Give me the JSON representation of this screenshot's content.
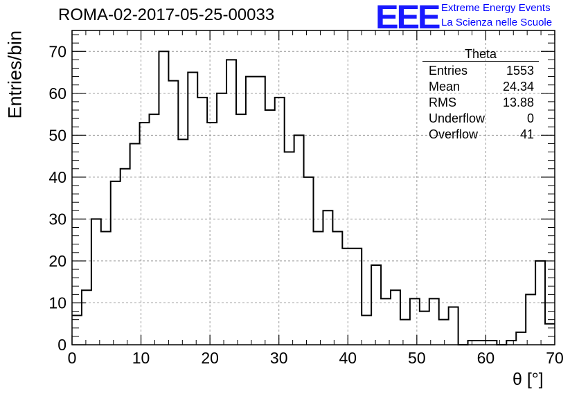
{
  "header": {
    "run_title": "ROMA-02-2017-05-25-00033",
    "logo_text": "EEE",
    "logo_line1": "Extreme Energy Events",
    "logo_line2": "La Scienza nelle Scuole"
  },
  "stats_box": {
    "title": "Theta",
    "rows": [
      {
        "label": "Entries",
        "value": "1553"
      },
      {
        "label": "Mean",
        "value": "24.34"
      },
      {
        "label": "RMS",
        "value": "13.88"
      },
      {
        "label": "Underflow",
        "value": "0"
      },
      {
        "label": "Overflow",
        "value": "41"
      }
    ]
  },
  "colors": {
    "histogram": "#000000",
    "grid": "#999999",
    "logo": "#1a1aff",
    "logo_text": "#0000ff"
  },
  "chart_data": {
    "type": "bar",
    "style": "step-histogram",
    "title": "ROMA-02-2017-05-25-00033",
    "xlabel": "θ [°]",
    "ylabel": "Entries/bin",
    "xlim": [
      0,
      70
    ],
    "ylim": [
      0,
      75
    ],
    "bin_width": 1.4,
    "bin_edges_start": 0,
    "xticks": [
      0,
      10,
      20,
      30,
      40,
      50,
      60,
      70
    ],
    "yticks": [
      0,
      10,
      20,
      30,
      40,
      50,
      60,
      70
    ],
    "grid": true,
    "legend": "top-right stats box",
    "values": [
      7,
      13,
      30,
      27,
      39,
      42,
      48,
      53,
      55,
      70,
      63,
      49,
      65,
      59,
      53,
      60,
      68,
      55,
      64,
      64,
      56,
      59,
      46,
      50,
      40,
      27,
      32,
      27,
      23,
      23,
      7,
      19,
      11,
      13,
      6,
      11,
      8,
      11,
      6,
      9,
      0,
      1,
      1,
      1,
      0,
      1,
      3,
      12,
      20,
      5
    ]
  }
}
